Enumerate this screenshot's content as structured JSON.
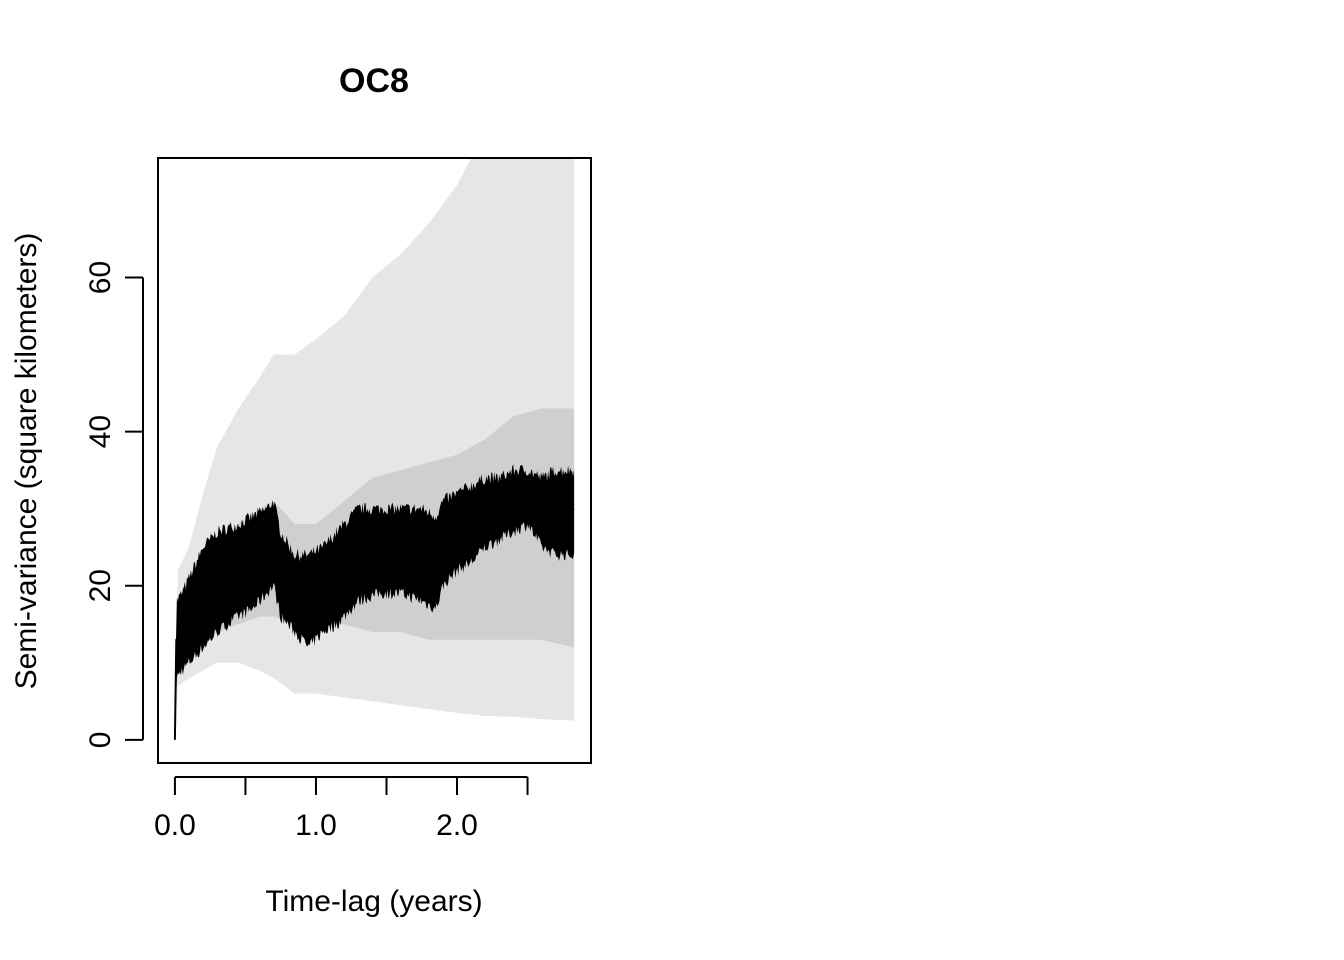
{
  "chart_data": {
    "type": "line",
    "title": "OC8",
    "xlabel": "Time-lag (years)",
    "ylabel": "Semi-variance (square kilometers)",
    "xlim": [
      -0.12,
      2.95
    ],
    "ylim": [
      -3,
      75.5
    ],
    "xticks": [
      0,
      0.5,
      1.0,
      1.5,
      2.0,
      2.5
    ],
    "xtick_labels": [
      "0.0",
      "",
      "1.0",
      "",
      "2.0",
      ""
    ],
    "yticks": [
      0,
      20,
      40,
      60
    ],
    "ytick_labels": [
      "0",
      "20",
      "40",
      "60"
    ],
    "grid": false,
    "legend": "none",
    "colors": {
      "line": "#000000",
      "inner_band": "#cfcfcf",
      "outer_band": "#e6e6e6"
    },
    "series": [
      {
        "role": "estimate",
        "x": [
          0.0,
          0.01,
          0.05,
          0.1,
          0.2,
          0.3,
          0.45,
          0.55,
          0.65,
          0.7,
          0.75,
          0.85,
          0.95,
          1.05,
          1.15,
          1.3,
          1.45,
          1.6,
          1.75,
          1.85,
          1.9,
          2.0,
          2.1,
          2.2,
          2.3,
          2.4,
          2.5,
          2.6,
          2.7,
          2.83
        ],
        "y": [
          0,
          13,
          14,
          15,
          19,
          21,
          23,
          23,
          25,
          25,
          21,
          18,
          18,
          20,
          21,
          24,
          24,
          24,
          24,
          24,
          26,
          27,
          27,
          28,
          29,
          30,
          30,
          29,
          29,
          30
        ],
        "y_low": [
          0,
          8,
          9,
          10,
          12,
          14,
          16,
          17,
          19,
          20,
          16,
          14,
          12,
          14,
          15,
          18,
          19,
          19,
          18,
          17,
          20,
          22,
          23,
          25,
          26,
          27,
          28,
          25,
          24,
          24
        ],
        "y_high": [
          0,
          18,
          19,
          21,
          25,
          27,
          28,
          29,
          30,
          31,
          27,
          24,
          24,
          25,
          27,
          30,
          30,
          30,
          30,
          29,
          31,
          32,
          33,
          34,
          34,
          35,
          35,
          34,
          35,
          35
        ]
      }
    ],
    "bands": [
      {
        "role": "outer",
        "x": [
          0.0,
          0.02,
          0.1,
          0.2,
          0.3,
          0.45,
          0.6,
          0.7,
          0.85,
          1.0,
          1.2,
          1.4,
          1.6,
          1.8,
          2.0,
          2.1,
          2.2,
          2.4,
          2.6,
          2.83
        ],
        "lower": [
          0,
          7,
          8,
          9,
          10,
          10,
          9,
          8,
          6,
          6,
          5.5,
          5,
          4.5,
          4,
          3.5,
          3.3,
          3.1,
          3,
          2.7,
          2.5
        ],
        "upper": [
          0,
          22,
          25,
          32,
          38,
          43,
          47,
          50,
          50,
          52,
          55,
          60,
          63,
          67,
          72,
          75.5,
          75.5,
          75.5,
          75.5,
          75.5
        ]
      },
      {
        "role": "inner",
        "x": [
          0.0,
          0.02,
          0.1,
          0.2,
          0.3,
          0.45,
          0.6,
          0.7,
          0.85,
          1.0,
          1.2,
          1.4,
          1.6,
          1.8,
          2.0,
          2.2,
          2.4,
          2.6,
          2.83
        ],
        "lower": [
          0,
          10,
          11,
          13,
          14,
          15,
          16,
          16,
          15,
          15,
          15,
          14,
          14,
          13,
          13,
          13,
          13,
          13,
          12
        ],
        "upper": [
          0,
          17,
          18,
          22,
          26,
          28,
          30,
          31,
          28,
          28,
          31,
          34,
          35,
          36,
          37,
          39,
          42,
          43,
          43
        ]
      }
    ]
  }
}
